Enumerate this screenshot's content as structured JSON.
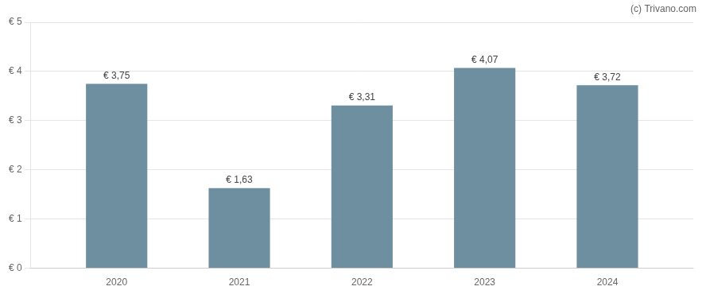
{
  "chart_data": {
    "type": "bar",
    "x": [
      2020,
      2021,
      2022,
      2023,
      2024
    ],
    "values": [
      3.75,
      1.63,
      3.31,
      4.07,
      3.72
    ],
    "value_labels": [
      "€ 3,75",
      "€ 1,63",
      "€ 3,31",
      "€ 4,07",
      "€ 3,72"
    ],
    "data_labels": true,
    "color": "#6e8fa0",
    "xlim": [
      2019.3,
      2024.7
    ],
    "xticks": [
      2020,
      2021,
      2022,
      2023,
      2024
    ],
    "ylim": [
      0,
      5
    ],
    "yticks": [
      {
        "value": 0,
        "label": "€ 0"
      },
      {
        "value": 1,
        "label": "€ 1"
      },
      {
        "value": 2,
        "label": "€ 2"
      },
      {
        "value": 3,
        "label": "€ 3"
      },
      {
        "value": 4,
        "label": "€ 4"
      },
      {
        "value": 5,
        "label": "€ 5"
      }
    ],
    "grid": "y",
    "annotations": [
      "(c) Trivano.com"
    ]
  }
}
